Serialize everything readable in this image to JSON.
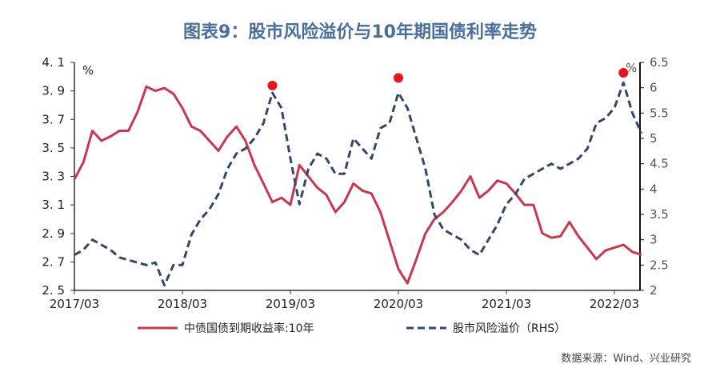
{
  "title": "图表9：股市风险溢价与10年期国债利率走势",
  "source": "数据来源：Wind、兴业研究",
  "chart_data": {
    "type": "line",
    "title": "图表9：股市风险溢价与10年期国债利率走势",
    "x": [
      "2017/03",
      "2017/04",
      "2017/05",
      "2017/06",
      "2017/07",
      "2017/08",
      "2017/09",
      "2017/10",
      "2017/11",
      "2017/12",
      "2018/01",
      "2018/02",
      "2018/03",
      "2018/04",
      "2018/05",
      "2018/06",
      "2018/07",
      "2018/08",
      "2018/09",
      "2018/10",
      "2018/11",
      "2018/12",
      "2019/01",
      "2019/02",
      "2019/03",
      "2019/04",
      "2019/05",
      "2019/06",
      "2019/07",
      "2019/08",
      "2019/09",
      "2019/10",
      "2019/11",
      "2019/12",
      "2020/01",
      "2020/02",
      "2020/03",
      "2020/04",
      "2020/05",
      "2020/06",
      "2020/07",
      "2020/08",
      "2020/09",
      "2020/10",
      "2020/11",
      "2020/12",
      "2021/01",
      "2021/02",
      "2021/03",
      "2021/04",
      "2021/05",
      "2021/06",
      "2021/07",
      "2021/08",
      "2021/09",
      "2021/10",
      "2021/11",
      "2021/12",
      "2022/01",
      "2022/02",
      "2022/03",
      "2022/04",
      "2022/05",
      "2022/06"
    ],
    "xticks": [
      "2017/03",
      "2018/03",
      "2019/03",
      "2020/03",
      "2021/03",
      "2022/03"
    ],
    "left_axis": {
      "unit": "%",
      "ylim": [
        2.5,
        4.1
      ],
      "ticks": [
        "2.5",
        "2.7",
        "2.9",
        "3.1",
        "3.3",
        "3.5",
        "3.7",
        "3.9",
        "4.1"
      ]
    },
    "right_axis": {
      "unit": "%",
      "ylim": [
        2,
        6.5
      ],
      "ticks": [
        "2",
        "2.5",
        "3",
        "3.5",
        "4",
        "4.5",
        "5",
        "5.5",
        "6",
        "6.5"
      ]
    },
    "series": [
      {
        "name": "中债国债到期收益率:10年",
        "axis": "left",
        "color": "#c8374f",
        "style": "solid",
        "values": [
          3.28,
          3.4,
          3.62,
          3.55,
          3.58,
          3.62,
          3.62,
          3.75,
          3.93,
          3.9,
          3.92,
          3.88,
          3.78,
          3.65,
          3.62,
          3.55,
          3.48,
          3.58,
          3.65,
          3.55,
          3.38,
          3.25,
          3.12,
          3.15,
          3.1,
          3.38,
          3.3,
          3.22,
          3.17,
          3.05,
          3.12,
          3.25,
          3.2,
          3.18,
          3.05,
          2.85,
          2.65,
          2.55,
          2.72,
          2.9,
          3.0,
          3.05,
          3.12,
          3.2,
          3.3,
          3.15,
          3.2,
          3.27,
          3.25,
          3.18,
          3.1,
          3.1,
          2.9,
          2.87,
          2.88,
          2.98,
          2.88,
          2.8,
          2.72,
          2.78,
          2.8,
          2.82,
          2.77,
          2.75
        ]
      },
      {
        "name": "股市风险溢价（RHS）",
        "axis": "right",
        "color": "#34466a",
        "style": "dashed",
        "values": [
          2.7,
          2.8,
          3.0,
          2.9,
          2.8,
          2.65,
          2.6,
          2.55,
          2.5,
          2.55,
          2.1,
          2.5,
          2.5,
          3.1,
          3.4,
          3.6,
          3.9,
          4.4,
          4.7,
          4.8,
          5.0,
          5.3,
          5.9,
          5.6,
          4.6,
          3.7,
          4.4,
          4.7,
          4.6,
          4.3,
          4.3,
          5.0,
          4.8,
          4.6,
          5.2,
          5.3,
          5.9,
          5.6,
          5.0,
          4.4,
          3.5,
          3.2,
          3.1,
          3.0,
          2.8,
          2.7,
          3.0,
          3.3,
          3.7,
          3.9,
          4.2,
          4.3,
          4.4,
          4.5,
          4.4,
          4.5,
          4.6,
          4.8,
          5.3,
          5.4,
          5.6,
          6.1,
          5.5,
          5.1
        ]
      }
    ],
    "highlights": [
      {
        "x": "2019/01",
        "y": 5.95
      },
      {
        "x": "2020/03",
        "y": 6.1
      },
      {
        "x": "2022/04",
        "y": 6.2
      }
    ],
    "highlight_color": "#e8141b",
    "legend": "bottom",
    "grid": false
  }
}
